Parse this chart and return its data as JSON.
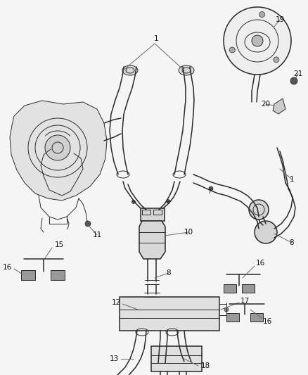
{
  "bg_color": "#f5f5f5",
  "line_color": "#2a2a2a",
  "figsize": [
    4.38,
    5.33
  ],
  "dpi": 100,
  "lw_thin": 0.7,
  "lw_med": 1.1,
  "lw_thick": 1.6,
  "gray_fill": "#cccccc",
  "dark_fill": "#555555",
  "mid_fill": "#aaaaaa"
}
